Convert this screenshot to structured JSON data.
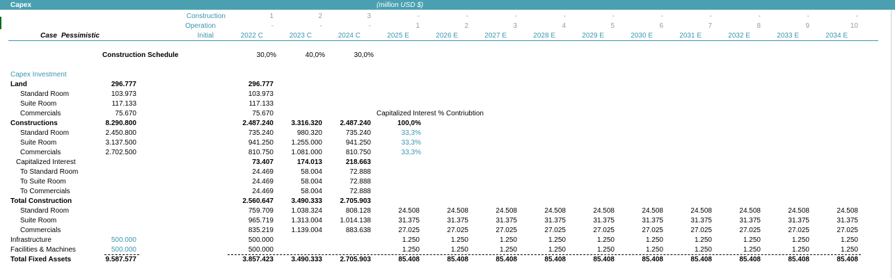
{
  "title": "Capex",
  "unit": "(million USD $)",
  "case_label": "Case",
  "case_value": "Pessimistic",
  "header_labels": {
    "construction": "Construction",
    "operation": "Operation",
    "initial": "Initial"
  },
  "construction_row": [
    "1",
    "2",
    "3",
    "-",
    "-",
    "-",
    "-",
    "-",
    "-",
    "-",
    "-",
    "-",
    "-"
  ],
  "operation_row": [
    "-",
    "-",
    "-",
    "1",
    "2",
    "3",
    "4",
    "5",
    "6",
    "7",
    "8",
    "9",
    "10"
  ],
  "years": [
    "2022 C",
    "2023 C",
    "2024 C",
    "2025 E",
    "2026 E",
    "2027 E",
    "2028 E",
    "2029 E",
    "2030 E",
    "2031 E",
    "2032 E",
    "2033 E",
    "2034 E"
  ],
  "schedule": {
    "label": "Construction Schedule",
    "values": [
      "30,0%",
      "40,0%",
      "30,0%"
    ]
  },
  "section_title": "Capex Investment",
  "cap_interest_note": "Capitalized Interest % Contriubtion",
  "rows": [
    {
      "label": "Land",
      "level": 0,
      "bold": true,
      "initial": "296.777",
      "initial_teal": false,
      "cols": [
        "296.777",
        "",
        "",
        "",
        "",
        "",
        "",
        "",
        "",
        "",
        "",
        "",
        ""
      ],
      "extra": "",
      "extra_bold": false
    },
    {
      "label": "Standard Room",
      "level": 1,
      "bold": false,
      "initial": "103.973",
      "initial_teal": false,
      "cols": [
        "103.973",
        "",
        "",
        "",
        "",
        "",
        "",
        "",
        "",
        "",
        "",
        "",
        ""
      ],
      "extra": "",
      "extra_bold": false
    },
    {
      "label": "Suite Room",
      "level": 1,
      "bold": false,
      "initial": "117.133",
      "initial_teal": false,
      "cols": [
        "117.133",
        "",
        "",
        "",
        "",
        "",
        "",
        "",
        "",
        "",
        "",
        "",
        ""
      ],
      "extra": "",
      "extra_bold": false
    },
    {
      "label": "Commercials",
      "level": 1,
      "bold": false,
      "initial": "75.670",
      "initial_teal": false,
      "cols": [
        "75.670",
        "",
        "",
        "",
        "",
        "",
        "",
        "",
        "",
        "",
        "",
        "",
        ""
      ],
      "extra": "",
      "extra_bold": false
    },
    {
      "label": "Constructions",
      "level": 0,
      "bold": true,
      "initial": "8.290.800",
      "initial_teal": false,
      "cols": [
        "2.487.240",
        "3.316.320",
        "2.487.240",
        "",
        "",
        "",
        "",
        "",
        "",
        "",
        "",
        "",
        ""
      ],
      "extra": "100,0%",
      "extra_bold": true
    },
    {
      "label": "Standard Room",
      "level": 1,
      "bold": false,
      "initial": "2.450.800",
      "initial_teal": false,
      "cols": [
        "735.240",
        "980.320",
        "735.240",
        "",
        "",
        "",
        "",
        "",
        "",
        "",
        "",
        "",
        ""
      ],
      "extra": "33,3%",
      "extra_bold": false
    },
    {
      "label": "Suite Room",
      "level": 1,
      "bold": false,
      "initial": "3.137.500",
      "initial_teal": false,
      "cols": [
        "941.250",
        "1.255.000",
        "941.250",
        "",
        "",
        "",
        "",
        "",
        "",
        "",
        "",
        "",
        ""
      ],
      "extra": "33,3%",
      "extra_bold": false
    },
    {
      "label": "Commercials",
      "level": 1,
      "bold": false,
      "initial": "2.702.500",
      "initial_teal": false,
      "cols": [
        "810.750",
        "1.081.000",
        "810.750",
        "",
        "",
        "",
        "",
        "",
        "",
        "",
        "",
        "",
        ""
      ],
      "extra": "33,3%",
      "extra_bold": false
    },
    {
      "label": "Capitalized Interest",
      "level": 2,
      "bold": false,
      "initial": "",
      "initial_teal": false,
      "cols": [
        "73.407",
        "174.013",
        "218.663",
        "",
        "",
        "",
        "",
        "",
        "",
        "",
        "",
        "",
        ""
      ],
      "cols_bold": true,
      "extra": "",
      "extra_bold": false
    },
    {
      "label": "To Standard Room",
      "level": 1,
      "bold": false,
      "initial": "",
      "initial_teal": false,
      "cols": [
        "24.469",
        "58.004",
        "72.888",
        "",
        "",
        "",
        "",
        "",
        "",
        "",
        "",
        "",
        ""
      ],
      "extra": "",
      "extra_bold": false
    },
    {
      "label": "To Suite Room",
      "level": 1,
      "bold": false,
      "initial": "",
      "initial_teal": false,
      "cols": [
        "24.469",
        "58.004",
        "72.888",
        "",
        "",
        "",
        "",
        "",
        "",
        "",
        "",
        "",
        ""
      ],
      "extra": "",
      "extra_bold": false
    },
    {
      "label": "To Commercials",
      "level": 1,
      "bold": false,
      "initial": "",
      "initial_teal": false,
      "cols": [
        "24.469",
        "58.004",
        "72.888",
        "",
        "",
        "",
        "",
        "",
        "",
        "",
        "",
        "",
        ""
      ],
      "extra": "",
      "extra_bold": false
    },
    {
      "label": "Total Construction",
      "level": 0,
      "bold": true,
      "initial": "",
      "initial_teal": false,
      "cols": [
        "2.560.647",
        "3.490.333",
        "2.705.903",
        "",
        "",
        "",
        "",
        "",
        "",
        "",
        "",
        "",
        ""
      ],
      "extra": "",
      "extra_bold": false
    },
    {
      "label": "Standard Room",
      "level": 1,
      "bold": false,
      "initial": "",
      "initial_teal": false,
      "cols": [
        "759.709",
        "1.038.324",
        "808.128",
        "24.508",
        "24.508",
        "24.508",
        "24.508",
        "24.508",
        "24.508",
        "24.508",
        "24.508",
        "24.508",
        "24.508"
      ],
      "extra": "",
      "extra_bold": false
    },
    {
      "label": "Suite Room",
      "level": 1,
      "bold": false,
      "initial": "",
      "initial_teal": false,
      "cols": [
        "965.719",
        "1.313.004",
        "1.014.138",
        "31.375",
        "31.375",
        "31.375",
        "31.375",
        "31.375",
        "31.375",
        "31.375",
        "31.375",
        "31.375",
        "31.375"
      ],
      "extra": "",
      "extra_bold": false
    },
    {
      "label": "Commercials",
      "level": 1,
      "bold": false,
      "initial": "",
      "initial_teal": false,
      "cols": [
        "835.219",
        "1.139.004",
        "883.638",
        "27.025",
        "27.025",
        "27.025",
        "27.025",
        "27.025",
        "27.025",
        "27.025",
        "27.025",
        "27.025",
        "27.025"
      ],
      "extra": "",
      "extra_bold": false
    },
    {
      "label": "Infrastructure",
      "level": 0,
      "bold": false,
      "initial": "500.000",
      "initial_teal": true,
      "cols": [
        "500.000",
        "",
        "",
        "1.250",
        "1.250",
        "1.250",
        "1.250",
        "1.250",
        "1.250",
        "1.250",
        "1.250",
        "1.250",
        "1.250"
      ],
      "extra": "",
      "extra_bold": false
    },
    {
      "label": "Facilities & Machines",
      "level": 0,
      "bold": false,
      "initial": "500.000",
      "initial_teal": true,
      "cols": [
        "500.000",
        "",
        "",
        "1.250",
        "1.250",
        "1.250",
        "1.250",
        "1.250",
        "1.250",
        "1.250",
        "1.250",
        "1.250",
        "1.250"
      ],
      "extra": "",
      "extra_bold": false
    },
    {
      "label": "Total Fixed Assets",
      "level": 0,
      "bold": true,
      "initial": "9.587.577",
      "initial_teal": false,
      "cols": [
        "3.857.423",
        "3.490.333",
        "2.705.903",
        "85.408",
        "85.408",
        "85.408",
        "85.408",
        "85.408",
        "85.408",
        "85.408",
        "85.408",
        "85.408",
        "85.408"
      ],
      "cols_bold": true,
      "extra": "",
      "extra_bold": false
    }
  ],
  "colors": {
    "title_bar": "#4aa0b0",
    "accent": "#3a95b0",
    "header_grey": "#9a9a9a"
  }
}
